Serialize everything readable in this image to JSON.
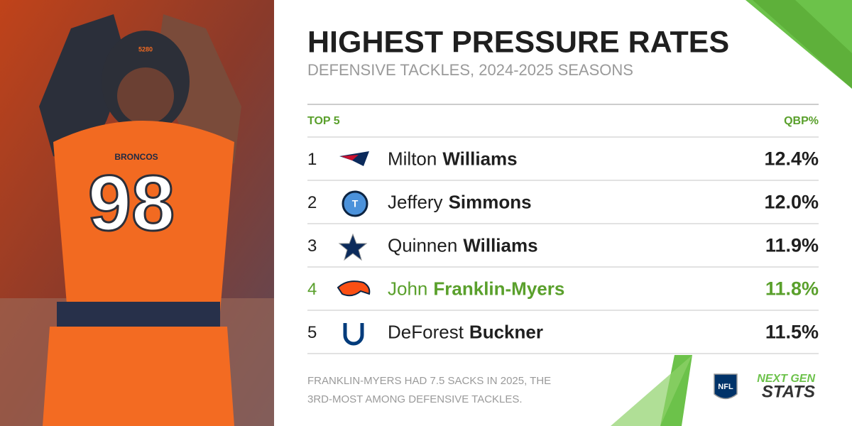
{
  "header": {
    "title": "HIGHEST PRESSURE RATES",
    "subtitle": "DEFENSIVE TACKLES, 2024-2025 SEASONS"
  },
  "photo": {
    "jersey_number": "98",
    "jersey_text": "BRONCOS",
    "helmet_text": "5280"
  },
  "table": {
    "columns": [
      "TOP 5",
      "QBP%"
    ],
    "rows": [
      {
        "rank": "1",
        "first": "Milton",
        "last": "Williams",
        "value": "12.4%"
      },
      {
        "rank": "2",
        "first": "Jeffery",
        "last": "Simmons",
        "value": "12.0%"
      },
      {
        "rank": "3",
        "first": "Quinnen",
        "last": "Williams",
        "value": "11.9%"
      },
      {
        "rank": "4",
        "first": "John",
        "last": "Franklin-Myers",
        "value": "11.8%",
        "highlight": true
      },
      {
        "rank": "5",
        "first": "DeForest",
        "last": "Buckner",
        "value": "11.5%"
      }
    ]
  },
  "footnote": [
    "FRANKLIN-MYERS HAD 7.5 SACKS IN 2025, THE",
    "3RD-MOST AMONG DEFENSIVE TACKLES."
  ],
  "brand": {
    "league": "NFL",
    "line1": "NEXT GEN",
    "line2": "STATS"
  }
}
